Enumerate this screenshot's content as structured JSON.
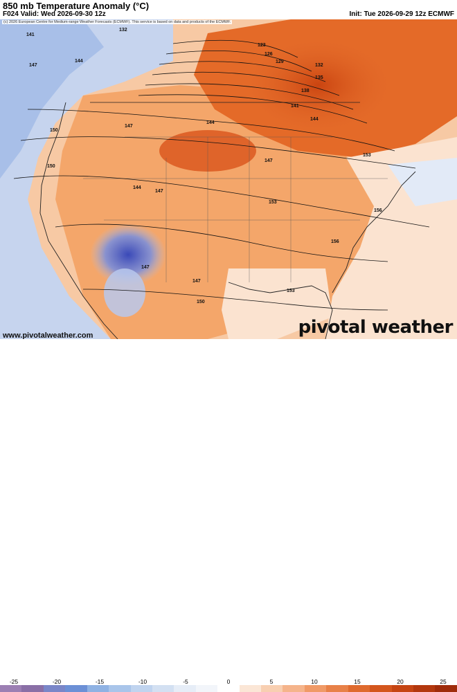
{
  "header": {
    "title": "850 mb Temperature Anomaly (°C)",
    "valid": "F024 Valid: Wed 2026-09-30 12z",
    "init": "Init: Tue 2026-09-29 12z ECMWF"
  },
  "map": {
    "credit": "(c) 2026 European Centre for Medium-range Weather Forecasts (ECMWF). This service is based on data and products of the ECMWF.",
    "contour_labels": [
      "132",
      "141",
      "144",
      "147",
      "150",
      "123",
      "126",
      "129",
      "132",
      "135",
      "138",
      "141",
      "144",
      "147",
      "150",
      "153",
      "153",
      "156",
      "156",
      "144",
      "144",
      "147",
      "147",
      "147",
      "147",
      "150",
      "153"
    ],
    "colors": {
      "ocean_blue": "#c8d6ef",
      "land_orange": "#f4a66a",
      "dark_orange": "#d9541a",
      "cold_blue": "#6e7fd6",
      "deep_blue": "#3a49b8",
      "neutral": "#fbe3d0"
    }
  },
  "footer": {
    "site": "www.pivotalweather.com",
    "brand": "pivotal weather"
  },
  "colorbar": {
    "ticks": [
      "-25",
      "-20",
      "-15",
      "-10",
      "-5",
      "0",
      "5",
      "10",
      "15",
      "20",
      "25"
    ],
    "colors": [
      "#9c7fb3",
      "#8a6fa6",
      "#7a86c8",
      "#6c90d6",
      "#8fb2e3",
      "#a9c5ea",
      "#c0d4ef",
      "#d3e0f2",
      "#e6edf7",
      "#f2f5fa",
      "#ffffff",
      "#fbe6d6",
      "#f8cfb1",
      "#f5b48b",
      "#f09a67",
      "#e88148",
      "#df6a2e",
      "#d4561d",
      "#c64513",
      "#b3380e",
      "#9f2c0b"
    ]
  }
}
